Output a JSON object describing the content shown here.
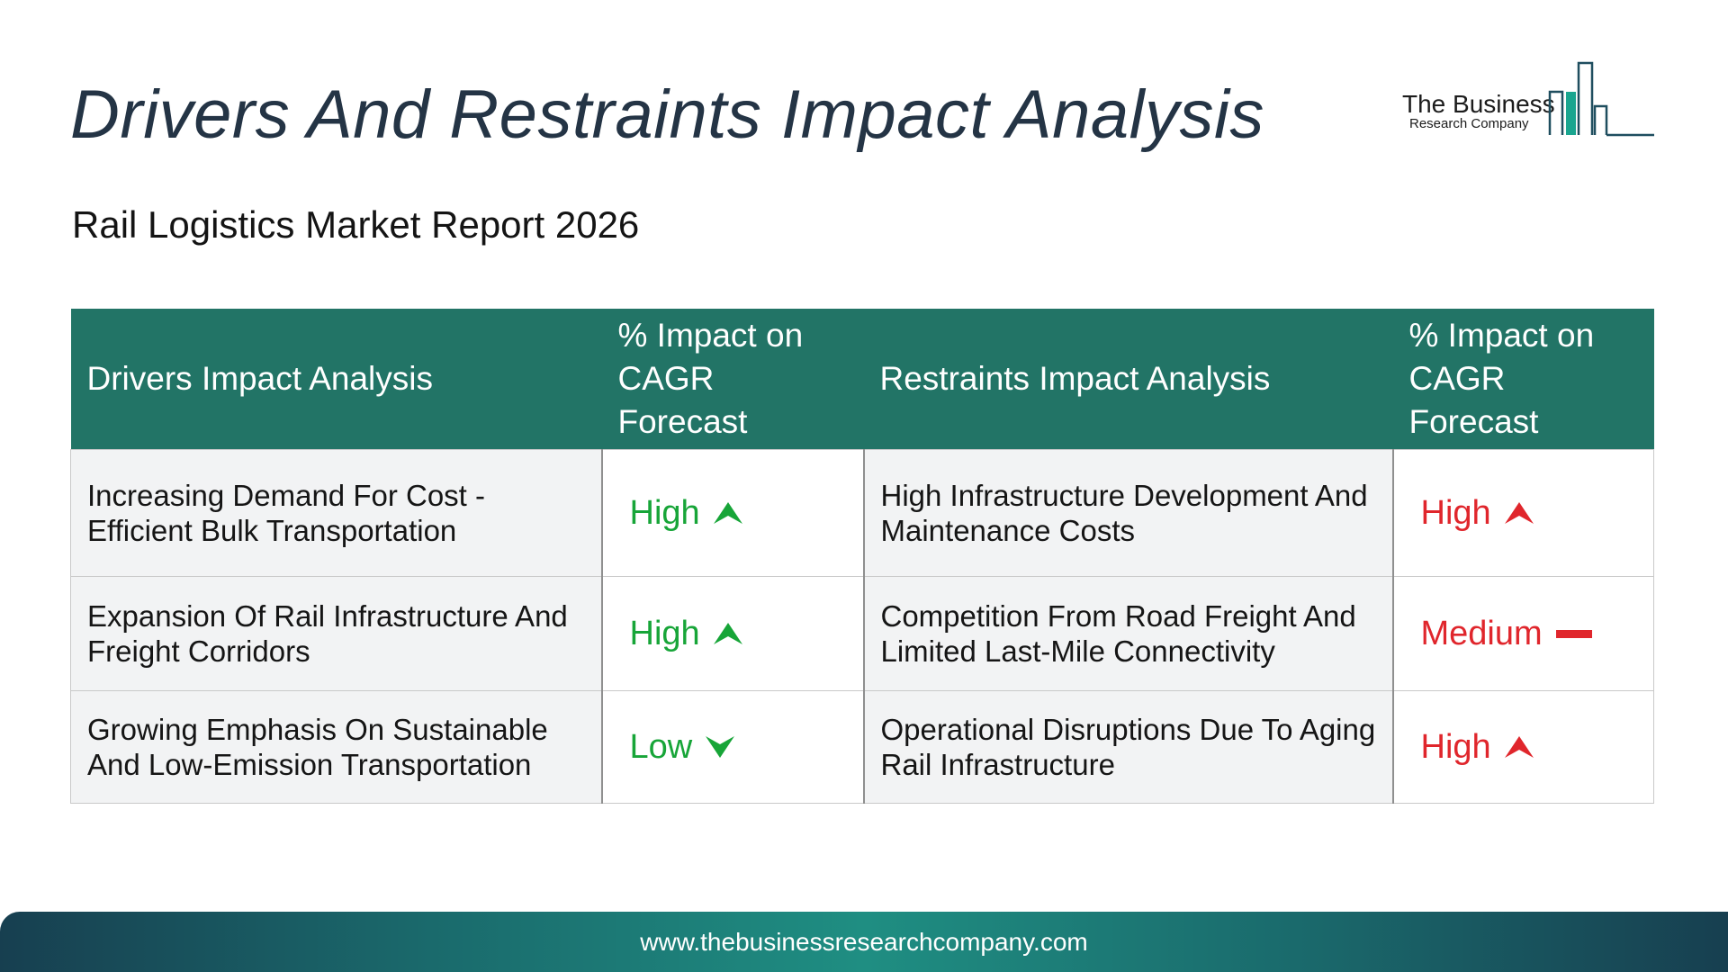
{
  "header": {
    "title": "Drivers And Restraints Impact Analysis",
    "subtitle": "Rail Logistics Market Report 2026"
  },
  "logo": {
    "name": "The Business",
    "tagline": "Research Company",
    "icon": "bar-building-logo-icon"
  },
  "table": {
    "headers": {
      "drivers": "Drivers Impact Analysis",
      "drivers_impact": "% Impact on CAGR Forecast",
      "restraints": "Restraints Impact Analysis",
      "restraints_impact": "% Impact on CAGR Forecast"
    },
    "rows": [
      {
        "driver": "Increasing Demand For Cost - Efficient Bulk Transportation",
        "driver_impact": "High",
        "driver_indicator": "arrow-up-icon",
        "restraint": "High Infrastructure Development And Maintenance Costs",
        "restraint_impact": "High",
        "restraint_indicator": "arrow-up-icon"
      },
      {
        "driver": "Expansion Of Rail Infrastructure And Freight Corridors",
        "driver_impact": "High",
        "driver_indicator": "arrow-up-icon",
        "restraint": "Competition From Road Freight And Limited Last-Mile Connectivity",
        "restraint_impact": "Medium",
        "restraint_indicator": "dash-icon"
      },
      {
        "driver": "Growing Emphasis On Sustainable And Low-Emission Transportation",
        "driver_impact": "Low",
        "driver_indicator": "arrow-down-icon",
        "restraint": "Operational Disruptions Due To Aging Rail Infrastructure",
        "restraint_impact": "High",
        "restraint_indicator": "arrow-up-icon"
      }
    ]
  },
  "colors": {
    "header_bg": "#227466",
    "driver_level": "#17a538",
    "restraint_level": "#e0262c",
    "title_text": "#243445"
  },
  "footer": {
    "url": "www.thebusinessresearchcompany.com"
  }
}
